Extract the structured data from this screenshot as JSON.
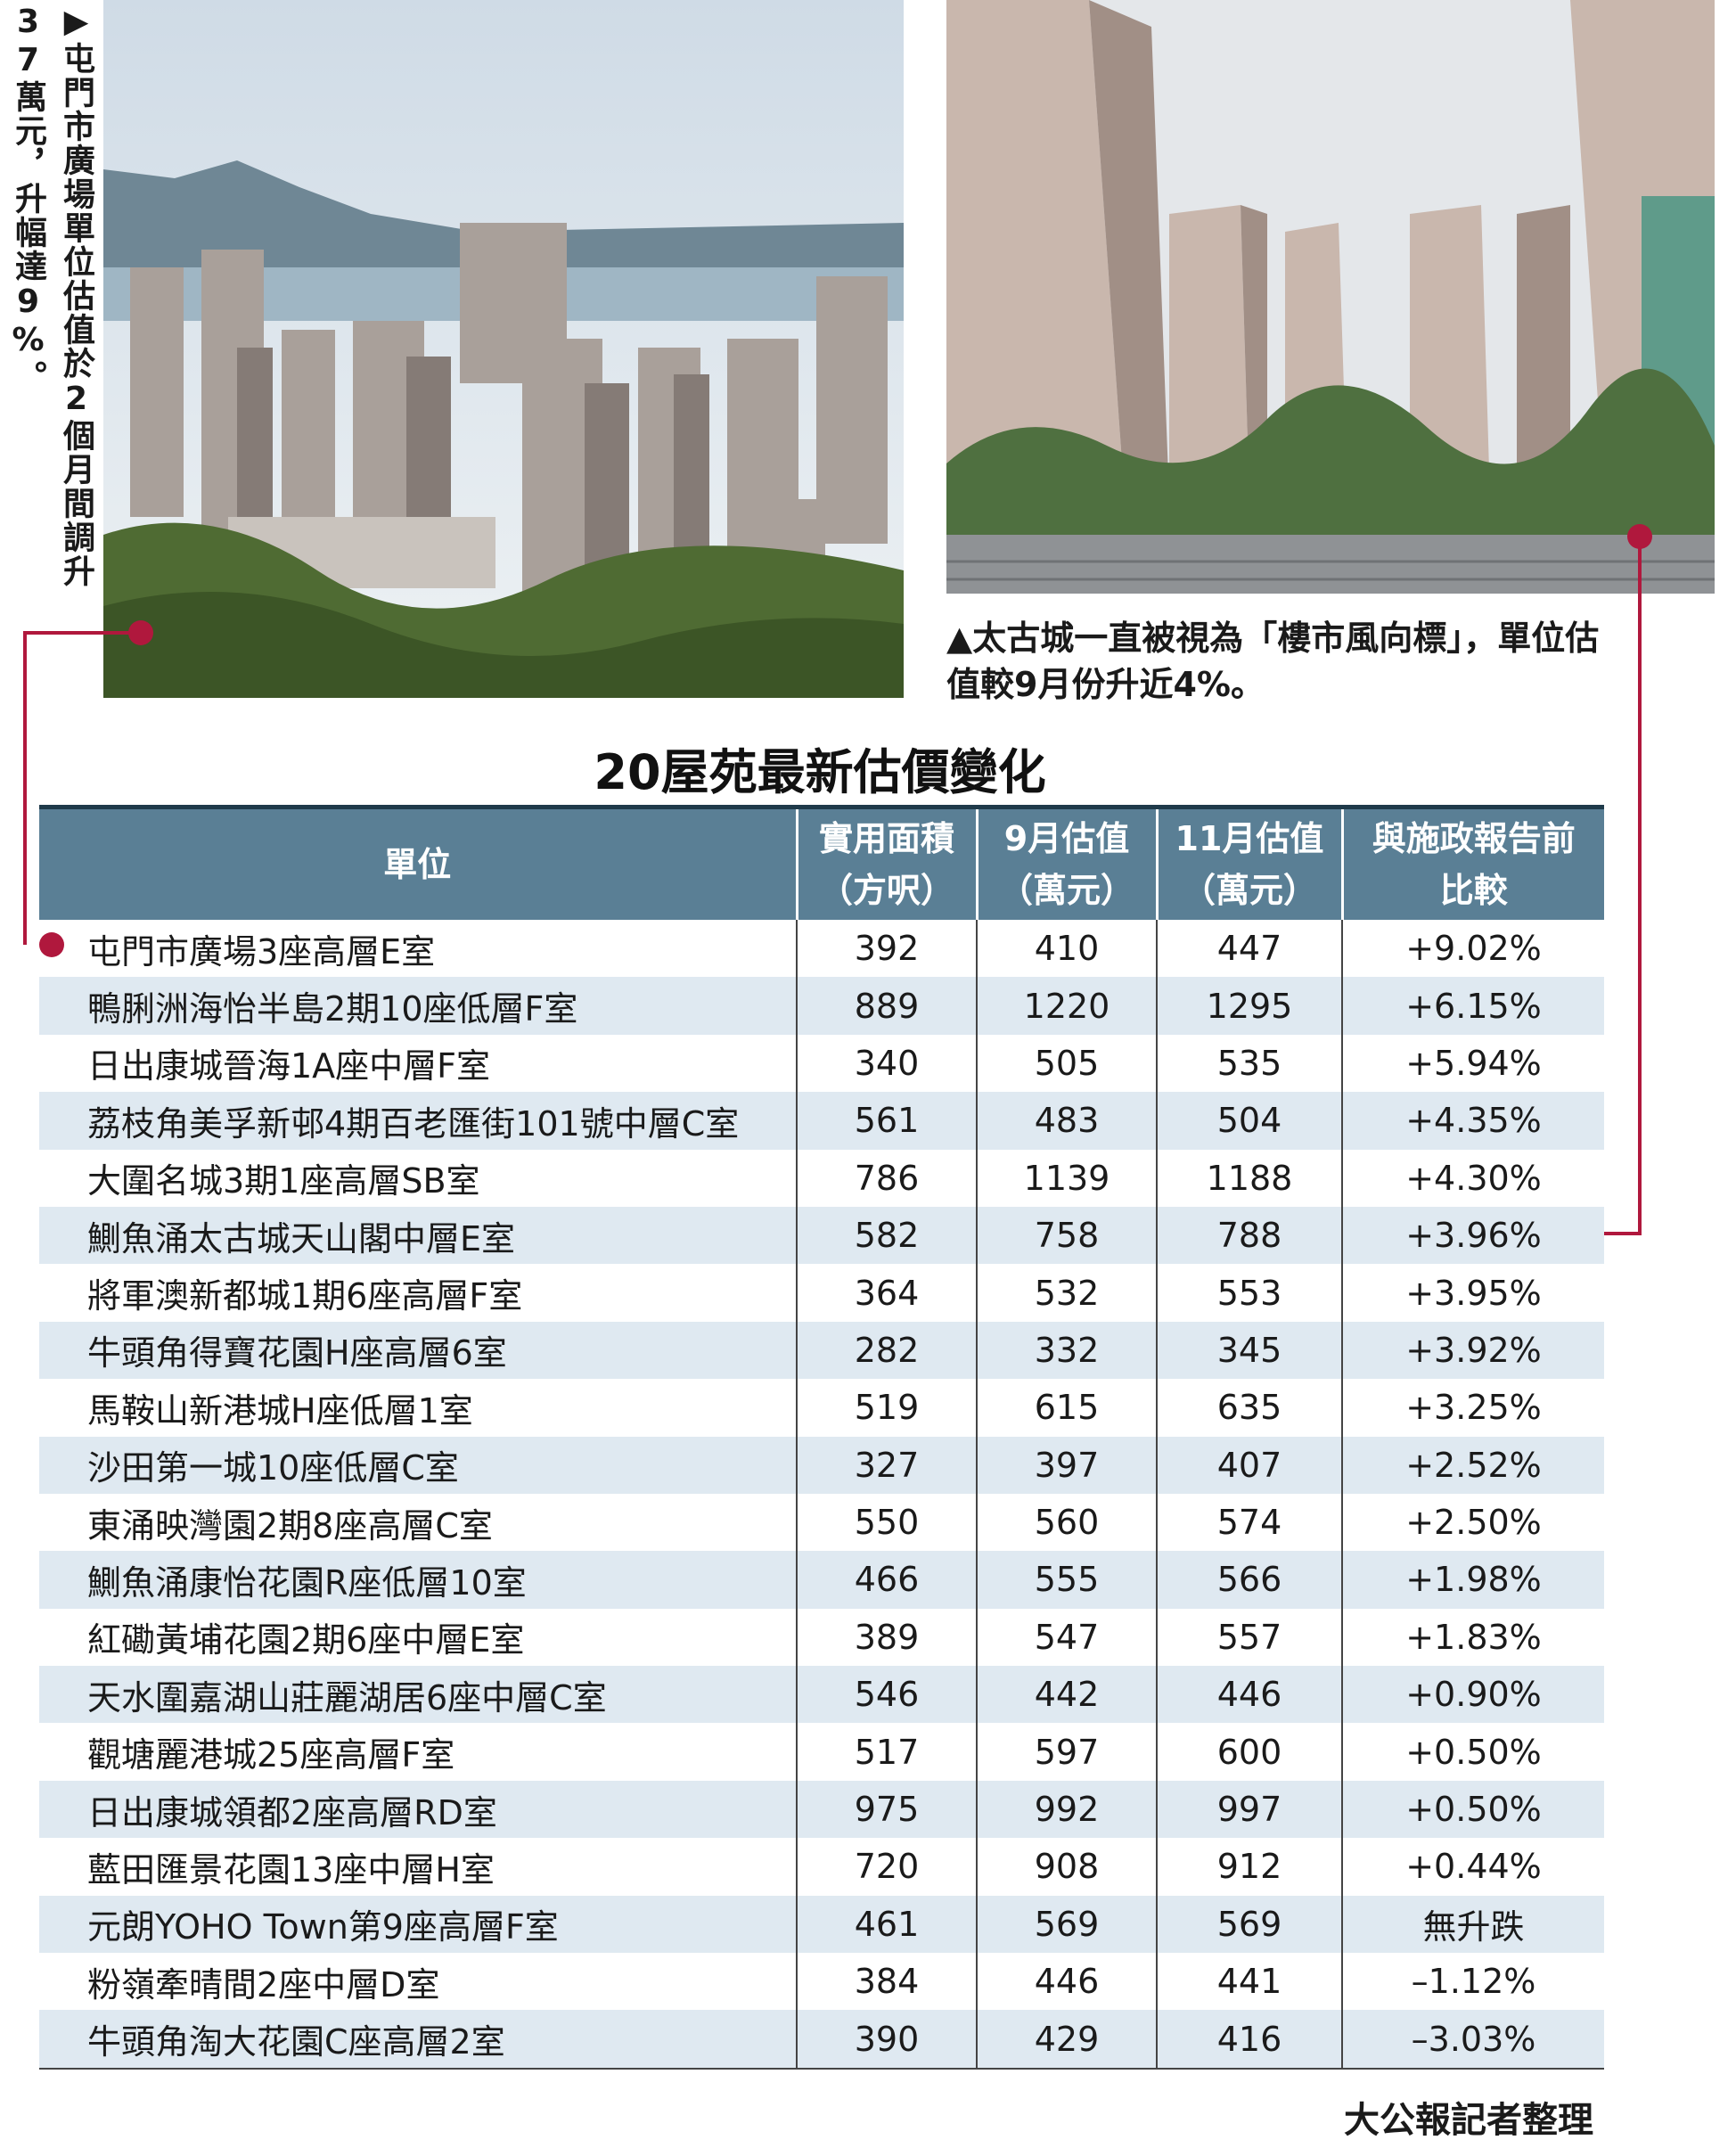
{
  "left_photo": {
    "caption": "▶屯門市廣場單位估值於2個月間調升37萬元，升幅達9%。"
  },
  "right_photo": {
    "caption": "▲太古城一直被視為「樓市風向標」，單位估值較9月份升近4%。"
  },
  "table": {
    "title": "20屋苑最新估價變化",
    "headers": {
      "unit": "單位",
      "area": "實用面積\n（方呎）",
      "sep": "9月估值\n（萬元）",
      "nov": "11月估值\n（萬元）",
      "change": "與施政報告前\n比較"
    },
    "rows": [
      {
        "name": "屯門市廣場3座高層E室",
        "area": "392",
        "sep": "410",
        "nov": "447",
        "change": "+9.02%"
      },
      {
        "name": "鴨脷洲海怡半島2期10座低層F室",
        "area": "889",
        "sep": "1220",
        "nov": "1295",
        "change": "+6.15%"
      },
      {
        "name": "日出康城晉海1A座中層F室",
        "area": "340",
        "sep": "505",
        "nov": "535",
        "change": "+5.94%"
      },
      {
        "name": "荔枝角美孚新邨4期百老匯街101號中層C室",
        "area": "561",
        "sep": "483",
        "nov": "504",
        "change": "+4.35%"
      },
      {
        "name": "大圍名城3期1座高層SB室",
        "area": "786",
        "sep": "1139",
        "nov": "1188",
        "change": "+4.30%"
      },
      {
        "name": "鰂魚涌太古城天山閣中層E室",
        "area": "582",
        "sep": "758",
        "nov": "788",
        "change": "+3.96%"
      },
      {
        "name": "將軍澳新都城1期6座高層F室",
        "area": "364",
        "sep": "532",
        "nov": "553",
        "change": "+3.95%"
      },
      {
        "name": "牛頭角得寶花園H座高層6室",
        "area": "282",
        "sep": "332",
        "nov": "345",
        "change": "+3.92%"
      },
      {
        "name": "馬鞍山新港城H座低層1室",
        "area": "519",
        "sep": "615",
        "nov": "635",
        "change": "+3.25%"
      },
      {
        "name": "沙田第一城10座低層C室",
        "area": "327",
        "sep": "397",
        "nov": "407",
        "change": "+2.52%"
      },
      {
        "name": "東涌映灣園2期8座高層C室",
        "area": "550",
        "sep": "560",
        "nov": "574",
        "change": "+2.50%"
      },
      {
        "name": "鰂魚涌康怡花園R座低層10室",
        "area": "466",
        "sep": "555",
        "nov": "566",
        "change": "+1.98%"
      },
      {
        "name": "紅磡黃埔花園2期6座中層E室",
        "area": "389",
        "sep": "547",
        "nov": "557",
        "change": "+1.83%"
      },
      {
        "name": "天水圍嘉湖山莊麗湖居6座中層C室",
        "area": "546",
        "sep": "442",
        "nov": "446",
        "change": "+0.90%"
      },
      {
        "name": "觀塘麗港城25座高層F室",
        "area": "517",
        "sep": "597",
        "nov": "600",
        "change": "+0.50%"
      },
      {
        "name": "日出康城領都2座高層RD室",
        "area": "975",
        "sep": "992",
        "nov": "997",
        "change": "+0.50%"
      },
      {
        "name": "藍田匯景花園13座中層H室",
        "area": "720",
        "sep": "908",
        "nov": "912",
        "change": "+0.44%"
      },
      {
        "name": "元朗YOHO Town第9座高層F室",
        "area": "461",
        "sep": "569",
        "nov": "569",
        "change": "無升跌"
      },
      {
        "name": "粉嶺牽晴間2座中層D室",
        "area": "384",
        "sep": "446",
        "nov": "441",
        "change": "–1.12%"
      },
      {
        "name": "牛頭角淘大花園C座高層2室",
        "area": "390",
        "sep": "429",
        "nov": "416",
        "change": "–3.03%"
      }
    ],
    "credit": "大公報記者整理"
  },
  "colors": {
    "header_bg": "#5a7f95",
    "stripe": "#dfe9f1",
    "leader": "#b0183d"
  }
}
